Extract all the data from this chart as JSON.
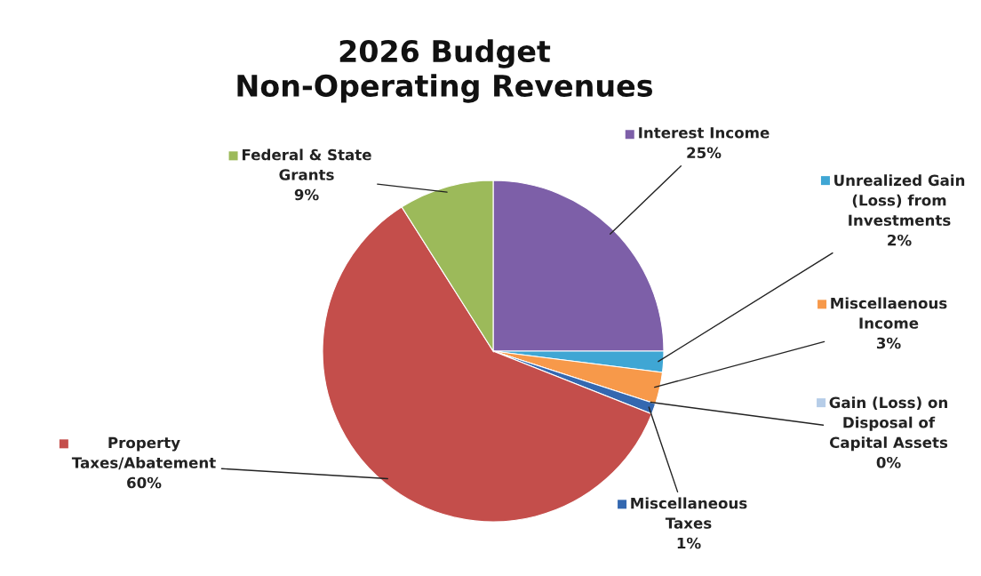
{
  "chart_data": {
    "type": "pie",
    "legend": "right",
    "title": "2026 Budget\nNon-Operating Revenues",
    "categories": [
      "Interest Income",
      "Unrealized Gain (Loss) from Investments",
      "Miscellaenous Income",
      "Gain (Loss) on Disposal of Capital Assets",
      "Miscellaneous Taxes",
      "Property Taxes/Abatement",
      "Federal & State Grants"
    ],
    "values": [
      25,
      2,
      3,
      0,
      1,
      60,
      9
    ],
    "value_labels": [
      "25%",
      "2%",
      "3%",
      "0%",
      "1%",
      "60%",
      "9%"
    ],
    "colors": [
      "#7d5fa8",
      "#3fa6d4",
      "#f7994a",
      "#b6cde8",
      "#3468b0",
      "#c44e4b",
      "#9cba5a"
    ]
  }
}
